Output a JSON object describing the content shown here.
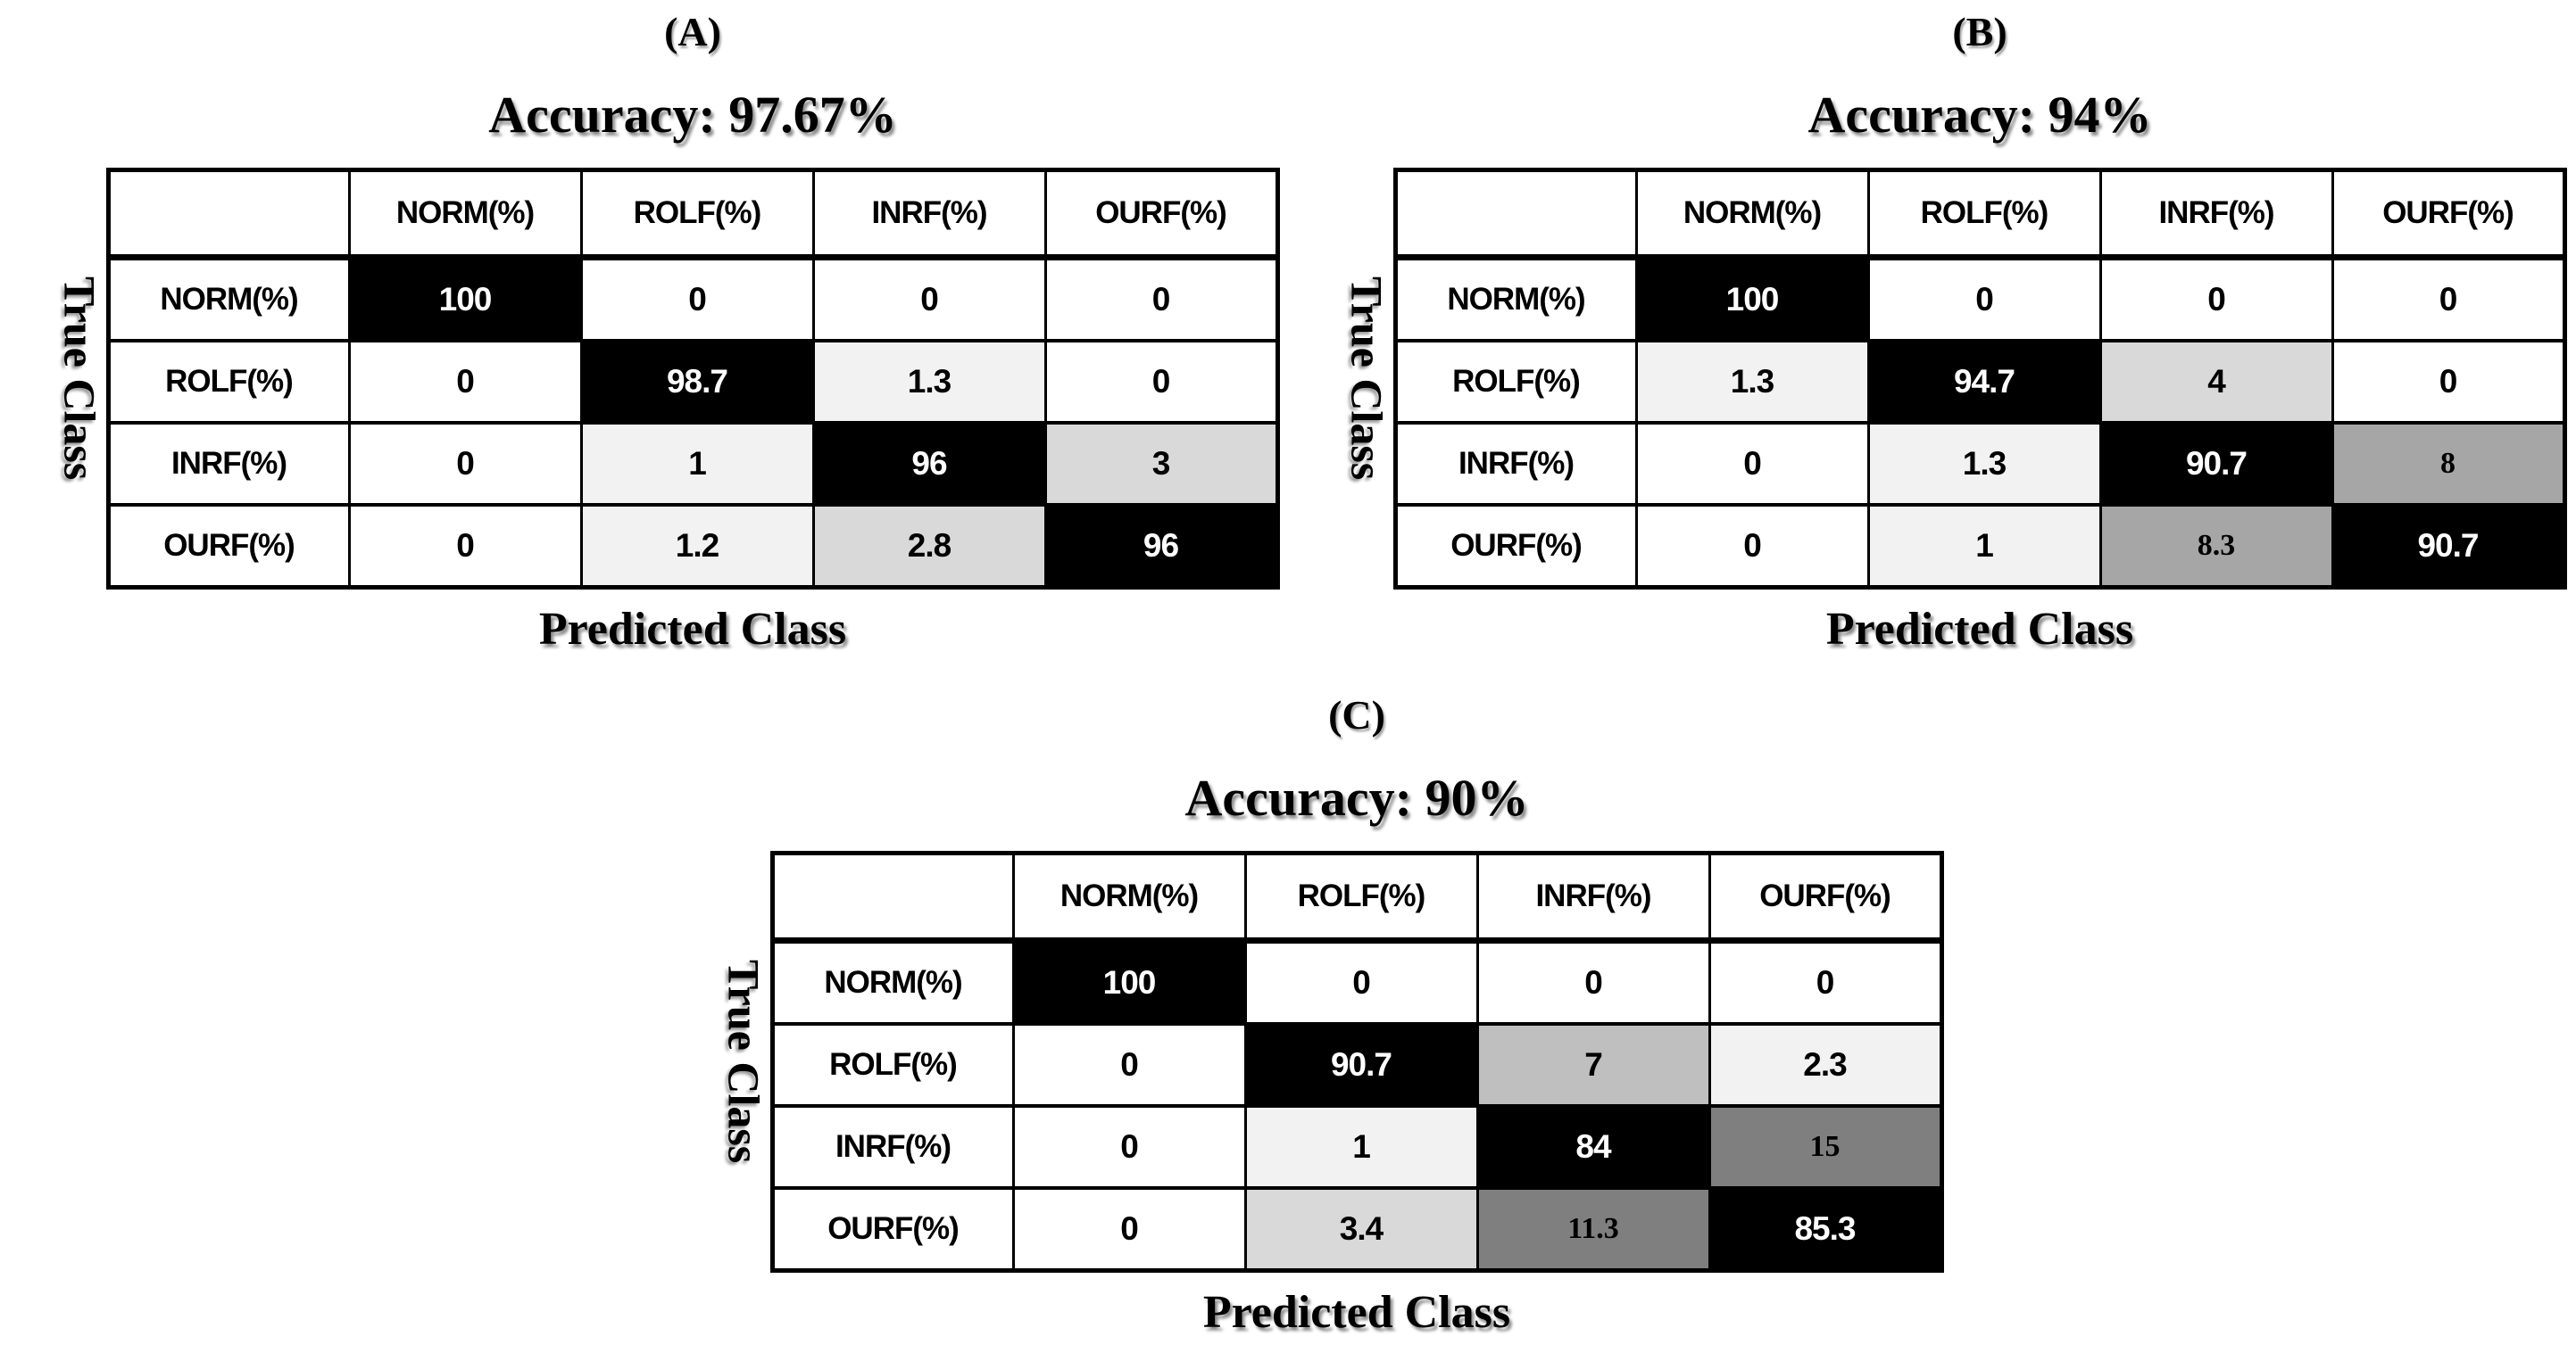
{
  "colors": {
    "diagonal_bg": "#000000",
    "diagonal_fg": "#ffffff",
    "shade_0": "#ffffff",
    "shade_1": "#f2f2f2",
    "shade_2": "#d9d9d9",
    "shade_3": "#bfbfbf",
    "shade_4": "#a6a6a6",
    "shade_5": "#7f7f7f"
  },
  "panels": [
    {
      "label": "(A)",
      "accuracy_title": "Accuracy: 97.67%",
      "accuracy_pct": 97.67,
      "x_axis_label": "Predicted Class",
      "y_axis_label": "True Class",
      "cols": [
        "NORM(%)",
        "ROLF(%)",
        "INRF(%)",
        "OURF(%)"
      ],
      "rows": [
        {
          "label": "NORM(%)",
          "cells": [
            {
              "v": "100",
              "bg": "#000000",
              "fg": "#ffffff"
            },
            {
              "v": "0",
              "bg": "#ffffff",
              "fg": "#000000"
            },
            {
              "v": "0",
              "bg": "#ffffff",
              "fg": "#000000"
            },
            {
              "v": "0",
              "bg": "#ffffff",
              "fg": "#000000"
            }
          ]
        },
        {
          "label": "ROLF(%)",
          "cells": [
            {
              "v": "0",
              "bg": "#ffffff",
              "fg": "#000000"
            },
            {
              "v": "98.7",
              "bg": "#000000",
              "fg": "#ffffff"
            },
            {
              "v": "1.3",
              "bg": "#f2f2f2",
              "fg": "#000000"
            },
            {
              "v": "0",
              "bg": "#ffffff",
              "fg": "#000000"
            }
          ]
        },
        {
          "label": "INRF(%)",
          "cells": [
            {
              "v": "0",
              "bg": "#ffffff",
              "fg": "#000000"
            },
            {
              "v": "1",
              "bg": "#f2f2f2",
              "fg": "#000000"
            },
            {
              "v": "96",
              "bg": "#000000",
              "fg": "#ffffff"
            },
            {
              "v": "3",
              "bg": "#d9d9d9",
              "fg": "#000000"
            }
          ]
        },
        {
          "label": "OURF(%)",
          "cells": [
            {
              "v": "0",
              "bg": "#ffffff",
              "fg": "#000000"
            },
            {
              "v": "1.2",
              "bg": "#f2f2f2",
              "fg": "#000000"
            },
            {
              "v": "2.8",
              "bg": "#d9d9d9",
              "fg": "#000000"
            },
            {
              "v": "96",
              "bg": "#000000",
              "fg": "#ffffff"
            }
          ]
        }
      ]
    },
    {
      "label": "(B)",
      "accuracy_title": "Accuracy: 94%",
      "accuracy_pct": 94,
      "x_axis_label": "Predicted Class",
      "y_axis_label": "True Class",
      "cols": [
        "NORM(%)",
        "ROLF(%)",
        "INRF(%)",
        "OURF(%)"
      ],
      "rows": [
        {
          "label": "NORM(%)",
          "cells": [
            {
              "v": "100",
              "bg": "#000000",
              "fg": "#ffffff"
            },
            {
              "v": "0",
              "bg": "#ffffff",
              "fg": "#000000"
            },
            {
              "v": "0",
              "bg": "#ffffff",
              "fg": "#000000"
            },
            {
              "v": "0",
              "bg": "#ffffff",
              "fg": "#000000"
            }
          ]
        },
        {
          "label": "ROLF(%)",
          "cells": [
            {
              "v": "1.3",
              "bg": "#f2f2f2",
              "fg": "#000000"
            },
            {
              "v": "94.7",
              "bg": "#000000",
              "fg": "#ffffff"
            },
            {
              "v": "4",
              "bg": "#d9d9d9",
              "fg": "#000000"
            },
            {
              "v": "0",
              "bg": "#ffffff",
              "fg": "#000000"
            }
          ]
        },
        {
          "label": "INRF(%)",
          "cells": [
            {
              "v": "0",
              "bg": "#ffffff",
              "fg": "#000000"
            },
            {
              "v": "1.3",
              "bg": "#f2f2f2",
              "fg": "#000000"
            },
            {
              "v": "90.7",
              "bg": "#000000",
              "fg": "#ffffff"
            },
            {
              "v": "8",
              "bg": "#a6a6a6",
              "fg": "#000000"
            }
          ]
        },
        {
          "label": "OURF(%)",
          "cells": [
            {
              "v": "0",
              "bg": "#ffffff",
              "fg": "#000000"
            },
            {
              "v": "1",
              "bg": "#f2f2f2",
              "fg": "#000000"
            },
            {
              "v": "8.3",
              "bg": "#a6a6a6",
              "fg": "#000000"
            },
            {
              "v": "90.7",
              "bg": "#000000",
              "fg": "#ffffff"
            }
          ]
        }
      ]
    },
    {
      "label": "(C)",
      "accuracy_title": "Accuracy: 90%",
      "accuracy_pct": 90,
      "x_axis_label": "Predicted Class",
      "y_axis_label": "True Class",
      "cols": [
        "NORM(%)",
        "ROLF(%)",
        "INRF(%)",
        "OURF(%)"
      ],
      "rows": [
        {
          "label": "NORM(%)",
          "cells": [
            {
              "v": "100",
              "bg": "#000000",
              "fg": "#ffffff"
            },
            {
              "v": "0",
              "bg": "#ffffff",
              "fg": "#000000"
            },
            {
              "v": "0",
              "bg": "#ffffff",
              "fg": "#000000"
            },
            {
              "v": "0",
              "bg": "#ffffff",
              "fg": "#000000"
            }
          ]
        },
        {
          "label": "ROLF(%)",
          "cells": [
            {
              "v": "0",
              "bg": "#ffffff",
              "fg": "#000000"
            },
            {
              "v": "90.7",
              "bg": "#000000",
              "fg": "#ffffff"
            },
            {
              "v": "7",
              "bg": "#bfbfbf",
              "fg": "#000000"
            },
            {
              "v": "2.3",
              "bg": "#f2f2f2",
              "fg": "#000000"
            }
          ]
        },
        {
          "label": "INRF(%)",
          "cells": [
            {
              "v": "0",
              "bg": "#ffffff",
              "fg": "#000000"
            },
            {
              "v": "1",
              "bg": "#f2f2f2",
              "fg": "#000000"
            },
            {
              "v": "84",
              "bg": "#000000",
              "fg": "#ffffff"
            },
            {
              "v": "15",
              "bg": "#7f7f7f",
              "fg": "#000000"
            }
          ]
        },
        {
          "label": "OURF(%)",
          "cells": [
            {
              "v": "0",
              "bg": "#ffffff",
              "fg": "#000000"
            },
            {
              "v": "3.4",
              "bg": "#d9d9d9",
              "fg": "#000000"
            },
            {
              "v": "11.3",
              "bg": "#7f7f7f",
              "fg": "#000000"
            },
            {
              "v": "85.3",
              "bg": "#000000",
              "fg": "#ffffff"
            }
          ]
        }
      ]
    }
  ],
  "chart_data": [
    {
      "type": "heatmap",
      "panel_label": "(A)",
      "title": "Accuracy: 97.67%",
      "xlabel": "Predicted Class",
      "ylabel": "True Class",
      "x_categories": [
        "NORM(%)",
        "ROLF(%)",
        "INRF(%)",
        "OURF(%)"
      ],
      "y_categories": [
        "NORM(%)",
        "ROLF(%)",
        "INRF(%)",
        "OURF(%)"
      ],
      "values": [
        [
          100,
          0,
          0,
          0
        ],
        [
          0,
          98.7,
          1.3,
          0
        ],
        [
          0,
          1,
          96,
          3
        ],
        [
          0,
          1.2,
          2.8,
          96
        ]
      ]
    },
    {
      "type": "heatmap",
      "panel_label": "(B)",
      "title": "Accuracy: 94%",
      "xlabel": "Predicted Class",
      "ylabel": "True Class",
      "x_categories": [
        "NORM(%)",
        "ROLF(%)",
        "INRF(%)",
        "OURF(%)"
      ],
      "y_categories": [
        "NORM(%)",
        "ROLF(%)",
        "INRF(%)",
        "OURF(%)"
      ],
      "values": [
        [
          100,
          0,
          0,
          0
        ],
        [
          1.3,
          94.7,
          4,
          0
        ],
        [
          0,
          1.3,
          90.7,
          8
        ],
        [
          0,
          1,
          8.3,
          90.7
        ]
      ]
    },
    {
      "type": "heatmap",
      "panel_label": "(C)",
      "title": "Accuracy: 90%",
      "xlabel": "Predicted Class",
      "ylabel": "True Class",
      "x_categories": [
        "NORM(%)",
        "ROLF(%)",
        "INRF(%)",
        "OURF(%)"
      ],
      "y_categories": [
        "NORM(%)",
        "ROLF(%)",
        "INRF(%)",
        "OURF(%)"
      ],
      "values": [
        [
          100,
          0,
          0,
          0
        ],
        [
          0,
          90.7,
          7,
          2.3
        ],
        [
          0,
          1,
          84,
          15
        ],
        [
          0,
          3.4,
          11.3,
          85.3
        ]
      ]
    }
  ]
}
